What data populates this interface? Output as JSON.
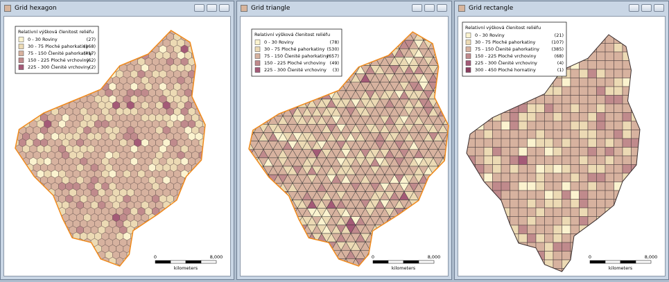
{
  "windows": [
    {
      "title": "Grid hexagon",
      "cell": "hex",
      "legend": {
        "title": "Relativní výšková členitost reliéfu",
        "items": [
          {
            "label": "0 - 30 Roviny",
            "count": "(27)"
          },
          {
            "label": "30 - 75 Ploché pahorkatiny",
            "count": "(168)"
          },
          {
            "label": "75 - 150 Členité pahorkatiny",
            "count": "(417)"
          },
          {
            "label": "150 - 225 Ploché vrchoviny",
            "count": "(62)"
          },
          {
            "label": "225 - 300 Členité vrchoviny",
            "count": "(2)"
          }
        ]
      },
      "scale": {
        "start": "0",
        "end": "8,000",
        "unit": "kilometers"
      }
    },
    {
      "title": "Grid triangle",
      "cell": "tri",
      "legend": {
        "title": "Relativní výšková členitost reliéfu",
        "items": [
          {
            "label": "0 - 30 Roviny",
            "count": "(78)"
          },
          {
            "label": "30 - 75 Ploché pahorkatiny",
            "count": "(530)"
          },
          {
            "label": "75 - 150 Členité pahorkatiny",
            "count": "(657)"
          },
          {
            "label": "150 - 225 Ploché vrchoviny",
            "count": "(49)"
          },
          {
            "label": "225 - 300 Členité vrchoviny",
            "count": "(3)"
          }
        ]
      },
      "scale": {
        "start": "0",
        "end": "8,000",
        "unit": "kilometers"
      }
    },
    {
      "title": "Grid rectangle",
      "cell": "rect",
      "legend": {
        "title": "Relativní výšková členitost reliéfu",
        "items": [
          {
            "label": "0 - 30 Roviny",
            "count": "(21)"
          },
          {
            "label": "30 - 75 Ploché pahorkatiny",
            "count": "(107)"
          },
          {
            "label": "75 - 150 Členité pahorkatiny",
            "count": "(385)"
          },
          {
            "label": "150 - 225 Ploché vrchoviny",
            "count": "(68)"
          },
          {
            "label": "225 - 300 Členité vrchoviny",
            "count": "(4)"
          },
          {
            "label": "300 - 450 Ploché hornatiny",
            "count": "(1)"
          }
        ]
      },
      "scale": {
        "start": "0",
        "end": "8,000",
        "unit": "kilometers"
      }
    }
  ]
}
